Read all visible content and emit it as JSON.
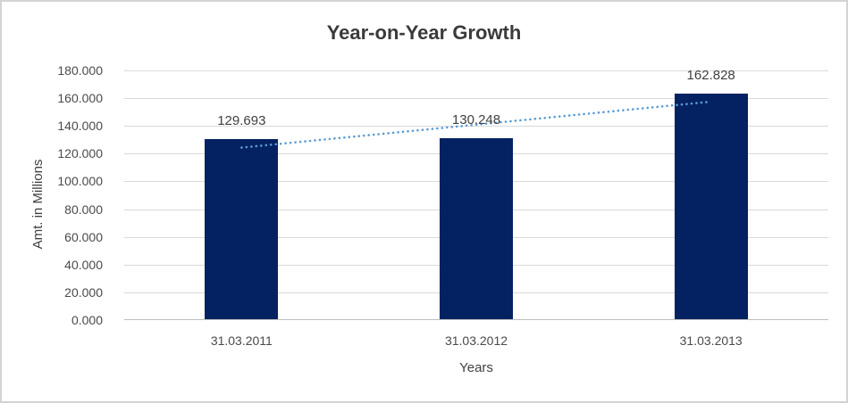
{
  "chart_data": {
    "type": "bar",
    "title": "Year-on-Year Growth",
    "categories": [
      "31.03.2011",
      "31.03.2012",
      "31.03.2013"
    ],
    "values": [
      129.693,
      130.248,
      162.828
    ],
    "data_labels": [
      "129.693",
      "130.248",
      "162.828"
    ],
    "xlabel": "Years",
    "ylabel": "Amt. in Millions",
    "ylim": [
      0,
      180
    ],
    "ytick_step": 20,
    "ytick_labels": [
      "0.000",
      "20.000",
      "40.000",
      "60.000",
      "80.000",
      "100.000",
      "120.000",
      "140.000",
      "160.000",
      "180.000"
    ],
    "grid": true,
    "legend": "none",
    "series_name": "Amt. in Millions",
    "trendline": {
      "type": "linear",
      "style": "dotted"
    },
    "colors": {
      "bar": "#042262",
      "trendline": "#5b9bd5",
      "gridline": "#d9d9d9",
      "axis_line": "#bfbfbf",
      "text": "#404040",
      "frame_border": "#d3d3d3",
      "background": "#ffffff"
    }
  }
}
